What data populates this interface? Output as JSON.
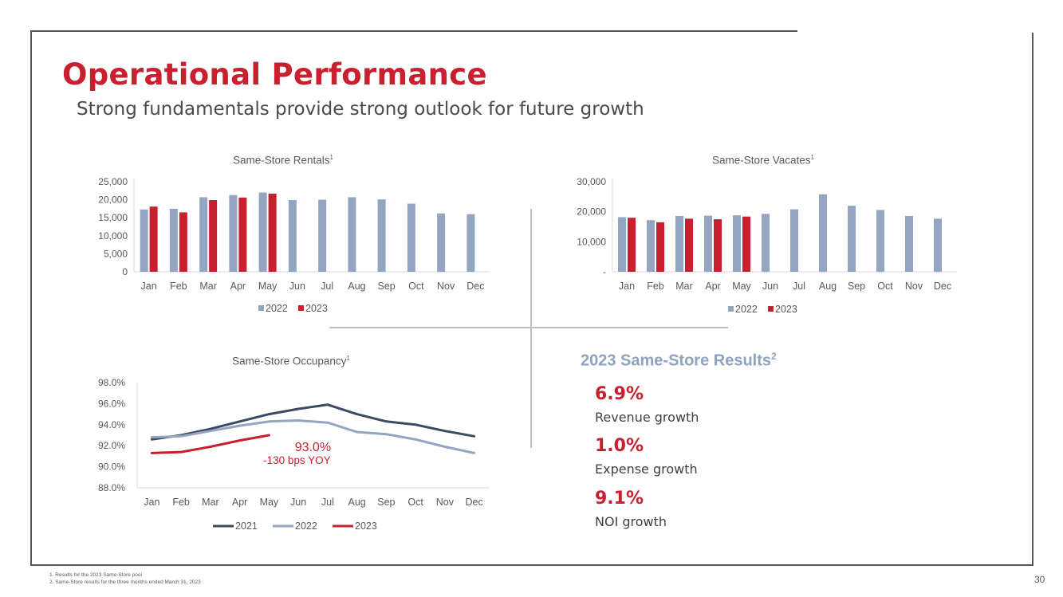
{
  "slide": {
    "title": "Operational Performance",
    "subtitle": "Strong fundamentals provide strong outlook for future growth",
    "page_number": "30",
    "footnotes": [
      "1.   Results for the 2023 Same-Store pool",
      "2.   Same-Store results for the three months ended March 31, 2023"
    ]
  },
  "results": {
    "title": "2023 Same-Store Results",
    "title_sup": "2",
    "items": [
      {
        "value": "6.9%",
        "label": "Revenue growth"
      },
      {
        "value": "1.0%",
        "label": "Expense growth"
      },
      {
        "value": "9.1%",
        "label": "NOI growth"
      }
    ]
  },
  "colors": {
    "c2021": "#3a4a63",
    "c2022": "#93a5c0",
    "c2023": "#c8202f"
  },
  "chart_data": [
    {
      "type": "bar",
      "title": "Same-Store Rentals",
      "title_sup": "1",
      "categories": [
        "Jan",
        "Feb",
        "Mar",
        "Apr",
        "May",
        "Jun",
        "Jul",
        "Aug",
        "Sep",
        "Oct",
        "Nov",
        "Dec"
      ],
      "series": [
        {
          "name": "2022",
          "values": [
            17300,
            17500,
            20700,
            21300,
            22000,
            19900,
            20000,
            20700,
            20100,
            18900,
            16200,
            16000
          ]
        },
        {
          "name": "2023",
          "values": [
            18100,
            16500,
            19900,
            20600,
            21700,
            null,
            null,
            null,
            null,
            null,
            null,
            null
          ]
        }
      ],
      "ylim": [
        0,
        25000
      ],
      "yticks": [
        "0",
        "5,000",
        "10,000",
        "15,000",
        "20,000",
        "25,000"
      ],
      "legend": "bottom"
    },
    {
      "type": "bar",
      "title": "Same-Store Vacates",
      "title_sup": "1",
      "categories": [
        "Jan",
        "Feb",
        "Mar",
        "Apr",
        "May",
        "Jun",
        "Jul",
        "Aug",
        "Sep",
        "Oct",
        "Nov",
        "Dec"
      ],
      "series": [
        {
          "name": "2022",
          "values": [
            18200,
            17200,
            18600,
            18700,
            18800,
            19300,
            20800,
            25800,
            22000,
            20600,
            18600,
            17700
          ]
        },
        {
          "name": "2023",
          "values": [
            18000,
            16500,
            17700,
            17500,
            18400,
            null,
            null,
            null,
            null,
            null,
            null,
            null
          ]
        }
      ],
      "ylim": [
        0,
        30000
      ],
      "yticks": [
        "-",
        "10,000",
        "20,000",
        "30,000"
      ],
      "legend": "bottom"
    },
    {
      "type": "line",
      "title": "Same-Store Occupancy",
      "title_sup": "1",
      "categories": [
        "Jan",
        "Feb",
        "Mar",
        "Apr",
        "May",
        "Jun",
        "Jul",
        "Aug",
        "Sep",
        "Oct",
        "Nov",
        "Dec"
      ],
      "series": [
        {
          "name": "2021",
          "values": [
            92.6,
            93.0,
            93.6,
            94.3,
            95.0,
            95.5,
            95.9,
            95.0,
            94.3,
            94.0,
            93.4,
            92.9
          ]
        },
        {
          "name": "2022",
          "values": [
            92.8,
            92.9,
            93.4,
            93.9,
            94.3,
            94.4,
            94.2,
            93.3,
            93.1,
            92.6,
            91.9,
            91.3
          ]
        },
        {
          "name": "2023",
          "values": [
            91.3,
            91.4,
            91.9,
            92.5,
            93.0,
            null,
            null,
            null,
            null,
            null,
            null,
            null
          ]
        }
      ],
      "ylim": [
        88.0,
        98.0
      ],
      "yticks": [
        "88.0%",
        "90.0%",
        "92.0%",
        "94.0%",
        "96.0%",
        "98.0%"
      ],
      "annotations": [
        "93.0%",
        "-130 bps YOY"
      ],
      "legend": "bottom"
    }
  ]
}
